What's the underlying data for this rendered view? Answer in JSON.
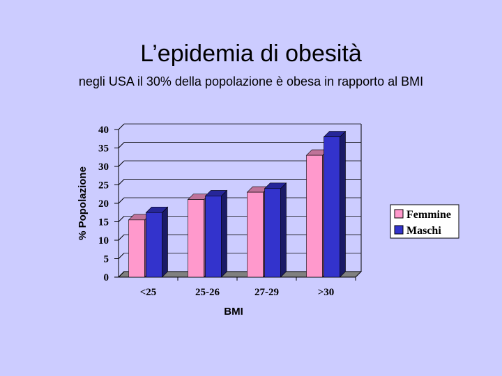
{
  "slide": {
    "title": "L’epidemia di obesità",
    "subtitle": "negli USA il 30% della popolazione è obesa in rapporto al BMI"
  },
  "chart_data": {
    "type": "bar",
    "categories": [
      "<25",
      "25-26",
      "27-29",
      ">30"
    ],
    "series": [
      {
        "name": "Femmine",
        "values": [
          15.5,
          21,
          23,
          33
        ],
        "color": "#ff99cc"
      },
      {
        "name": "Maschi",
        "values": [
          17.5,
          22,
          24,
          38
        ],
        "color": "#3333cc"
      }
    ],
    "xlabel": "BMI",
    "ylabel": "% Popolazione",
    "ylim": [
      0,
      40
    ],
    "yticks": [
      0,
      5,
      10,
      15,
      20,
      25,
      30,
      35,
      40
    ],
    "grid": true,
    "legend_position": "right",
    "style": "3d"
  }
}
